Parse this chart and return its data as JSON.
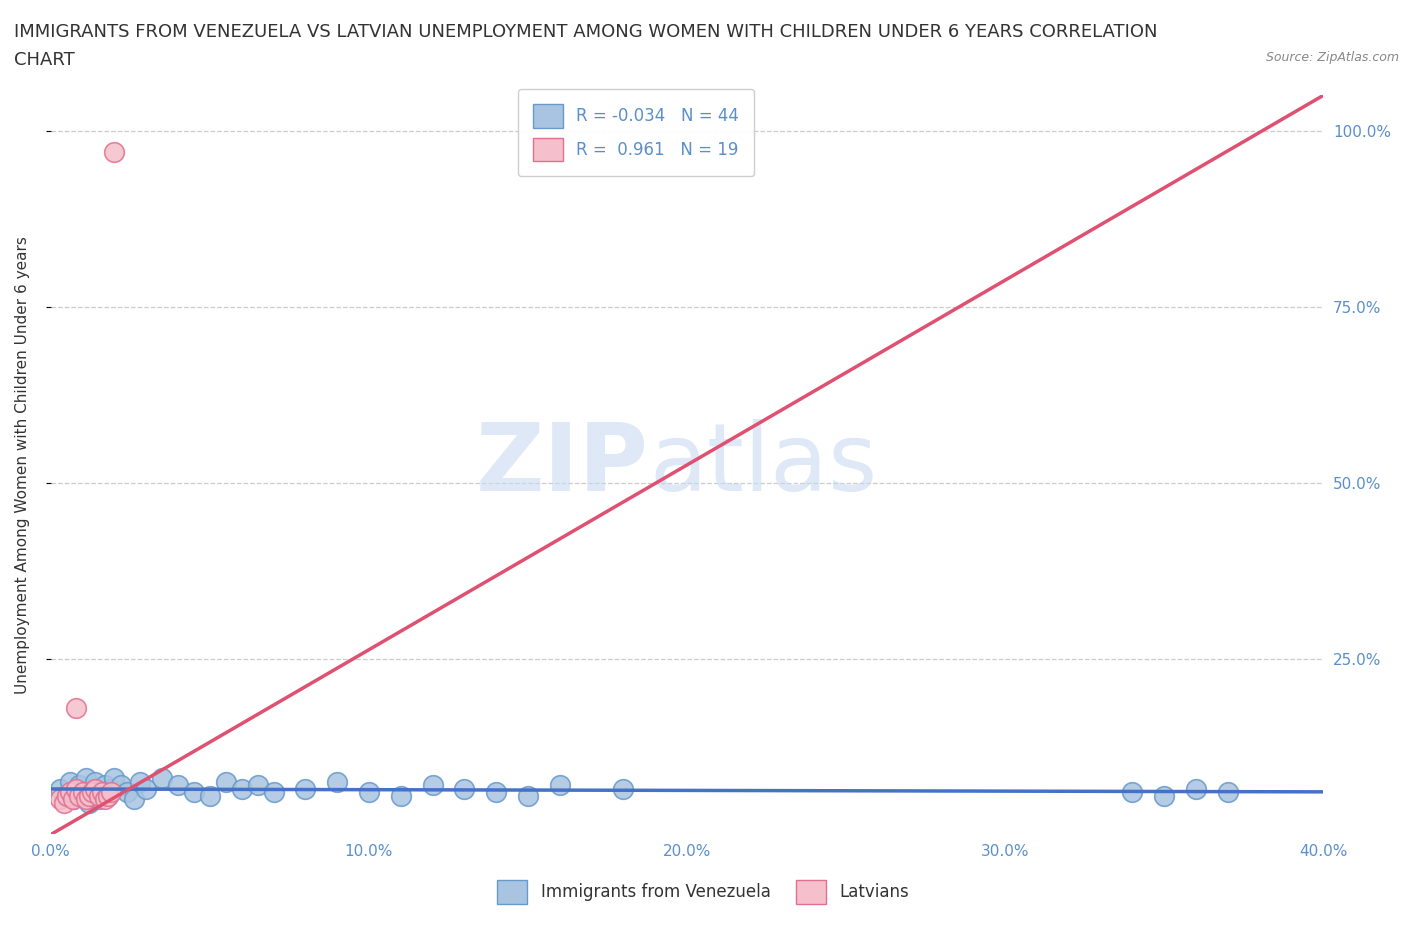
{
  "title_line1": "IMMIGRANTS FROM VENEZUELA VS LATVIAN UNEMPLOYMENT AMONG WOMEN WITH CHILDREN UNDER 6 YEARS CORRELATION",
  "title_line2": "CHART",
  "source_text": "Source: ZipAtlas.com",
  "ylabel": "Unemployment Among Women with Children Under 6 years",
  "xlim": [
    0.0,
    0.4
  ],
  "ylim": [
    0.0,
    1.05
  ],
  "xtick_values": [
    0.0,
    0.1,
    0.2,
    0.3,
    0.4
  ],
  "ytick_values": [
    0.25,
    0.5,
    0.75,
    1.0
  ],
  "watermark_zip": "ZIP",
  "watermark_atlas": "atlas",
  "blue_color": "#a8c4e0",
  "blue_edge": "#6699cc",
  "pink_color": "#f5c0cb",
  "pink_edge": "#e07090",
  "trend_blue": "#4472c4",
  "trend_pink": "#e05070",
  "tick_color": "#5b8fcc",
  "grid_color": "#cccccc",
  "background_color": "#ffffff",
  "title_fontsize": 13,
  "axis_label_fontsize": 11,
  "tick_fontsize": 11,
  "blue_r": -0.034,
  "blue_n": 44,
  "pink_r": 0.961,
  "pink_n": 19,
  "blue_x": [
    0.003,
    0.005,
    0.006,
    0.007,
    0.008,
    0.009,
    0.01,
    0.011,
    0.012,
    0.013,
    0.014,
    0.015,
    0.016,
    0.017,
    0.018,
    0.019,
    0.02,
    0.022,
    0.024,
    0.026,
    0.028,
    0.03,
    0.035,
    0.04,
    0.045,
    0.05,
    0.055,
    0.06,
    0.065,
    0.07,
    0.08,
    0.09,
    0.1,
    0.11,
    0.12,
    0.13,
    0.14,
    0.15,
    0.16,
    0.18,
    0.34,
    0.35,
    0.36,
    0.37
  ],
  "blue_y": [
    0.065,
    0.055,
    0.075,
    0.05,
    0.06,
    0.07,
    0.055,
    0.08,
    0.045,
    0.065,
    0.075,
    0.05,
    0.06,
    0.07,
    0.055,
    0.065,
    0.08,
    0.07,
    0.06,
    0.05,
    0.075,
    0.065,
    0.08,
    0.07,
    0.06,
    0.055,
    0.075,
    0.065,
    0.07,
    0.06,
    0.065,
    0.075,
    0.06,
    0.055,
    0.07,
    0.065,
    0.06,
    0.055,
    0.07,
    0.065,
    0.06,
    0.055,
    0.065,
    0.06
  ],
  "pink_x": [
    0.003,
    0.004,
    0.005,
    0.006,
    0.007,
    0.008,
    0.009,
    0.01,
    0.011,
    0.012,
    0.013,
    0.014,
    0.015,
    0.016,
    0.017,
    0.018,
    0.019,
    0.008,
    0.02
  ],
  "pink_y": [
    0.05,
    0.045,
    0.055,
    0.06,
    0.05,
    0.065,
    0.055,
    0.06,
    0.05,
    0.055,
    0.06,
    0.065,
    0.055,
    0.06,
    0.05,
    0.055,
    0.06,
    0.18,
    0.97
  ]
}
